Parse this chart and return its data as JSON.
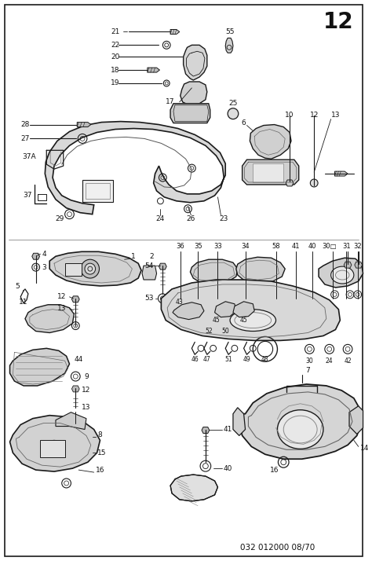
{
  "title_number": "12",
  "footer_text": "032 012000 08/70",
  "background_color": "#ffffff",
  "fig_width": 4.74,
  "fig_height": 7.14,
  "dpi": 100,
  "title_fontsize": 20,
  "footer_fontsize": 7.5,
  "label_fontsize": 6.5,
  "border_lw": 1.2,
  "line_color": "#1a1a1a",
  "label_color": "#111111"
}
